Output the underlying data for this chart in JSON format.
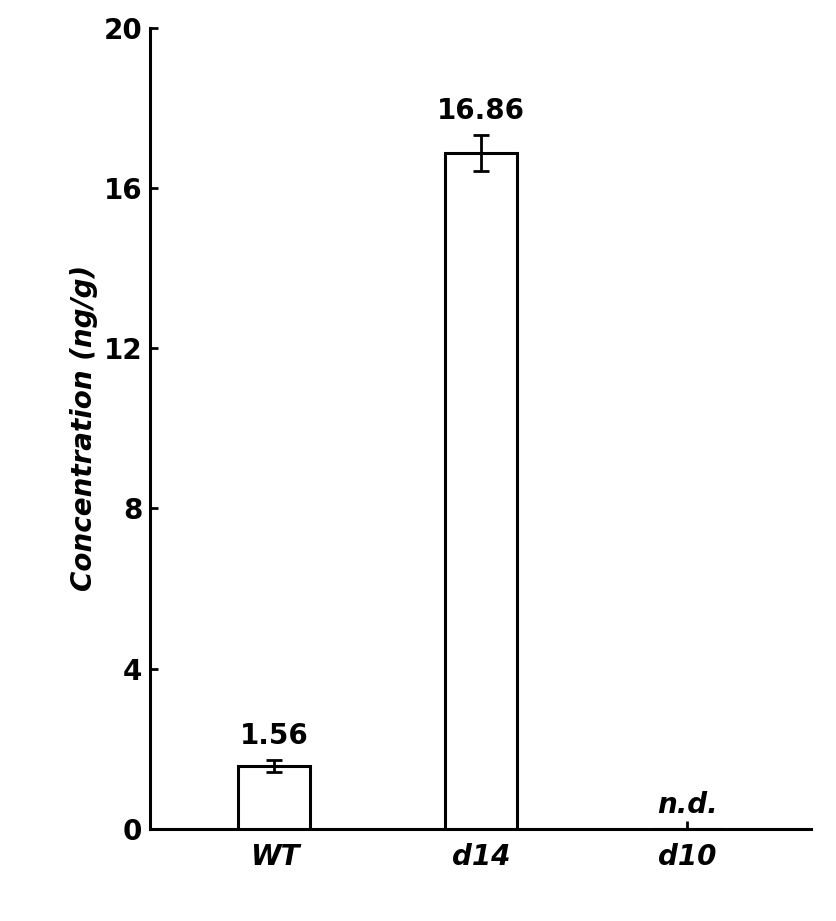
{
  "categories": [
    "WT",
    "d14",
    "d10"
  ],
  "values": [
    1.56,
    16.86,
    0
  ],
  "errors": [
    0.15,
    0.45,
    0
  ],
  "bar_labels": [
    "1.56",
    "16.86",
    "n.d."
  ],
  "bar_color": "#ffffff",
  "bar_edgecolor": "#000000",
  "bar_linewidth": 2.2,
  "bar_width": 0.35,
  "ylabel": "Concentration (ng/g)",
  "ylim": [
    0,
    20
  ],
  "yticks": [
    0,
    4,
    8,
    12,
    16,
    20
  ],
  "tick_fontsize": 20,
  "value_fontsize": 20,
  "ylabel_fontsize": 20,
  "error_capsize": 6,
  "error_linewidth": 2.0,
  "background_color": "#ffffff"
}
